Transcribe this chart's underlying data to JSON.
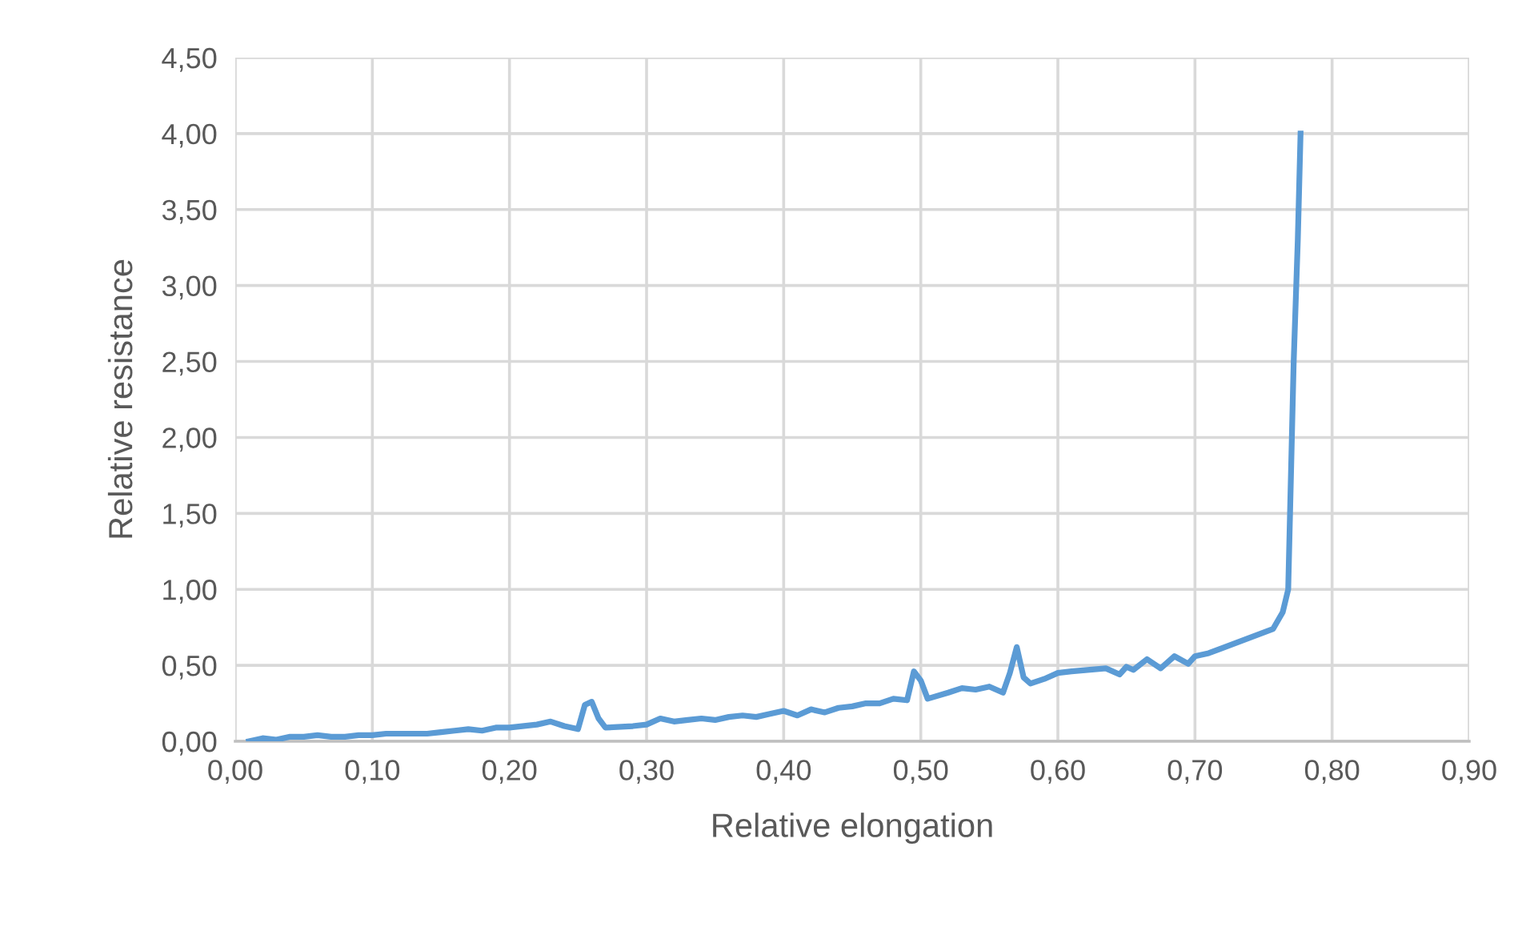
{
  "chart_data": {
    "type": "line",
    "xlabel": "Relative elongation",
    "ylabel": "Relative resistance",
    "xlim": [
      0,
      0.9
    ],
    "xticks": [
      {
        "value": 0,
        "label": "0,00"
      },
      {
        "value": 0.1,
        "label": "0,10"
      },
      {
        "value": 0.2,
        "label": "0,20"
      },
      {
        "value": 0.3,
        "label": "0,30"
      },
      {
        "value": 0.4,
        "label": "0,40"
      },
      {
        "value": 0.5,
        "label": "0,50"
      },
      {
        "value": 0.6,
        "label": "0,60"
      },
      {
        "value": 0.7,
        "label": "0,70"
      },
      {
        "value": 0.8,
        "label": "0,80"
      },
      {
        "value": 0.9,
        "label": "0,90"
      }
    ],
    "ylim": [
      0,
      4.5
    ],
    "yticks": [
      {
        "value": 0,
        "label": "0,00"
      },
      {
        "value": 0.5,
        "label": "0,50"
      },
      {
        "value": 1,
        "label": "1,00"
      },
      {
        "value": 1.5,
        "label": "1,50"
      },
      {
        "value": 2,
        "label": "2,00"
      },
      {
        "value": 2.5,
        "label": "2,50"
      },
      {
        "value": 3,
        "label": "3,00"
      },
      {
        "value": 3.5,
        "label": "3,50"
      },
      {
        "value": 4,
        "label": "4,00"
      },
      {
        "value": 4.5,
        "label": "4,50"
      }
    ],
    "grid": true,
    "marker": "none",
    "line_style": "solid",
    "series": [
      {
        "color": "#5b9bd5",
        "x": [
          0.01,
          0.02,
          0.03,
          0.04,
          0.05,
          0.06,
          0.07,
          0.08,
          0.09,
          0.1,
          0.11,
          0.12,
          0.14,
          0.15,
          0.16,
          0.17,
          0.18,
          0.19,
          0.2,
          0.22,
          0.23,
          0.24,
          0.25,
          0.255,
          0.26,
          0.265,
          0.27,
          0.29,
          0.3,
          0.31,
          0.32,
          0.33,
          0.34,
          0.35,
          0.36,
          0.37,
          0.38,
          0.39,
          0.4,
          0.41,
          0.42,
          0.43,
          0.44,
          0.45,
          0.46,
          0.47,
          0.48,
          0.49,
          0.495,
          0.5,
          0.505,
          0.52,
          0.53,
          0.54,
          0.55,
          0.56,
          0.565,
          0.57,
          0.575,
          0.58,
          0.59,
          0.6,
          0.61,
          0.635,
          0.645,
          0.65,
          0.655,
          0.665,
          0.675,
          0.685,
          0.695,
          0.7,
          0.71,
          0.757,
          0.764,
          0.768,
          0.772,
          0.775,
          0.777
        ],
        "values": [
          0.0,
          0.02,
          0.01,
          0.03,
          0.03,
          0.04,
          0.03,
          0.03,
          0.04,
          0.04,
          0.05,
          0.05,
          0.05,
          0.06,
          0.07,
          0.08,
          0.07,
          0.09,
          0.09,
          0.11,
          0.13,
          0.1,
          0.08,
          0.24,
          0.26,
          0.15,
          0.09,
          0.1,
          0.11,
          0.15,
          0.13,
          0.14,
          0.15,
          0.14,
          0.16,
          0.17,
          0.16,
          0.18,
          0.2,
          0.17,
          0.21,
          0.19,
          0.22,
          0.23,
          0.25,
          0.25,
          0.28,
          0.27,
          0.46,
          0.4,
          0.28,
          0.32,
          0.35,
          0.34,
          0.36,
          0.32,
          0.45,
          0.62,
          0.42,
          0.38,
          0.41,
          0.45,
          0.46,
          0.48,
          0.44,
          0.49,
          0.47,
          0.54,
          0.48,
          0.56,
          0.51,
          0.56,
          0.58,
          0.74,
          0.85,
          1.0,
          2.5,
          3.3,
          4.0
        ]
      }
    ]
  }
}
